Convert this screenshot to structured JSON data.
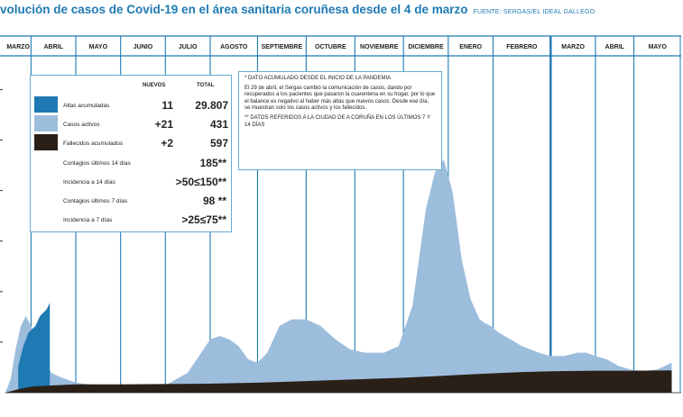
{
  "title": "volución de casos de Covid-19 en el área sanitaria coruñesa desde el 4 de marzo",
  "source": "FUENTE: SERGAS/EL IDEAL GALLEGO",
  "colors": {
    "accent": "#1f7ab3",
    "altas": "#1f7ab3",
    "activos": "#9dbddd",
    "fallecidos": "#2b2018",
    "grid": "#1f7ab3"
  },
  "legend": {
    "header_nuevos": "NUEVOS",
    "header_total": "TOTAL",
    "rows": [
      {
        "label": "Altas acumuladas",
        "nuevos": "11",
        "total": "29.807"
      },
      {
        "label": "Casos activos",
        "nuevos": "+21",
        "total": "431"
      },
      {
        "label": "Fallecidos acumulados",
        "nuevos": "+2",
        "total": "597"
      }
    ],
    "stats": [
      {
        "label": "Contagios últimos 14 días",
        "value": "185**"
      },
      {
        "label": "Incidencia a 14 días",
        "value": ">50≤150**"
      },
      {
        "label": "Contagios últimos 7 días",
        "value": "98 **"
      },
      {
        "label": "Incidencia a 7 días",
        "value": ">25≤75**"
      }
    ]
  },
  "notes": {
    "note1": "* DATO ACUMULADO DESDE EL INICIO DE LA PANDEMIA",
    "note2": "El 29 de abril, el Sergas cambió la comunicación de casos, dando por recuperados a los pacientes que pasaron la cuarentena en su hogar, por lo que el balance es negativo al haber más altas que nuevos casos. Desde ese día, se muestran solo los casos activos y los fallecidos.",
    "note3": "** DATOS REFERIDOS A LA CIUDAD DE A CORUÑA EN LOS ÚLTIMOS 7 Y 14 DÍAS"
  },
  "chart_data": {
    "type": "area",
    "months": [
      "MARZO",
      "ABRIL",
      "MAYO",
      "JUNIO",
      "JULIO",
      "AGOSTO",
      "SEPTIEMBRE",
      "OCTUBRE",
      "NOVIEMBRE",
      "DICIEMBRE",
      "ENERO",
      "FEBRERO",
      "MARZO",
      "ABRIL",
      "MAYO"
    ],
    "x_units": "months since 2020-03-01",
    "x_range": [
      0,
      14.8
    ],
    "y_range": [
      0,
      1
    ],
    "y_units": "relative height (no scale printed)",
    "series": [
      {
        "name": "Casos activos",
        "x": [
          0,
          0.2,
          0.4,
          0.6,
          0.8,
          1.0,
          1.2,
          1.45,
          1.6,
          1.8,
          2.0,
          2.3,
          2.6,
          3.0,
          3.5,
          4.0,
          4.5,
          4.8,
          5.0,
          5.2,
          5.4,
          5.6,
          5.8,
          6.0,
          6.2,
          6.45,
          6.7,
          7.0,
          7.3,
          7.6,
          7.9,
          8.2,
          8.6,
          8.9,
          9.2,
          9.5,
          9.7,
          9.9,
          10.1,
          10.3,
          10.5,
          10.7,
          10.8,
          10.95,
          11.1,
          11.3,
          11.5,
          11.8,
          12.0,
          12.3,
          12.6,
          12.8,
          13.0,
          13.3,
          13.6,
          13.9,
          14.2,
          14.5,
          14.8
        ],
        "y": [
          0,
          0.04,
          0.13,
          0.2,
          0.23,
          0.2,
          0.14,
          0.06,
          0.05,
          0.04,
          0.03,
          0.025,
          0.02,
          0.02,
          0.02,
          0.022,
          0.06,
          0.12,
          0.16,
          0.17,
          0.16,
          0.14,
          0.1,
          0.09,
          0.12,
          0.2,
          0.22,
          0.22,
          0.2,
          0.16,
          0.13,
          0.12,
          0.12,
          0.14,
          0.26,
          0.55,
          0.66,
          0.7,
          0.6,
          0.4,
          0.28,
          0.22,
          0.21,
          0.2,
          0.18,
          0.16,
          0.14,
          0.12,
          0.11,
          0.11,
          0.12,
          0.12,
          0.11,
          0.1,
          0.08,
          0.07,
          0.065,
          0.07,
          0.09
        ]
      },
      {
        "name": "Altas acumuladas",
        "x": [
          0.5,
          0.7,
          0.9,
          1.1,
          1.2,
          1.35,
          1.42
        ],
        "y": [
          0.08,
          0.14,
          0.18,
          0.2,
          0.23,
          0.25,
          0.27
        ]
      },
      {
        "name": "Fallecidos acumulados",
        "x": [
          0,
          0.5,
          1.0,
          1.5,
          2.0,
          3.0,
          4.0,
          5.0,
          6.0,
          7.0,
          8.0,
          9.0,
          9.8,
          10.5,
          11.0,
          11.5,
          12.0,
          12.5,
          13.0,
          13.5,
          14.0,
          14.8
        ],
        "y": [
          0,
          0.01,
          0.018,
          0.022,
          0.025,
          0.025,
          0.026,
          0.027,
          0.03,
          0.035,
          0.04,
          0.045,
          0.05,
          0.055,
          0.058,
          0.062,
          0.064,
          0.065,
          0.066,
          0.066,
          0.066,
          0.067
        ]
      }
    ]
  }
}
